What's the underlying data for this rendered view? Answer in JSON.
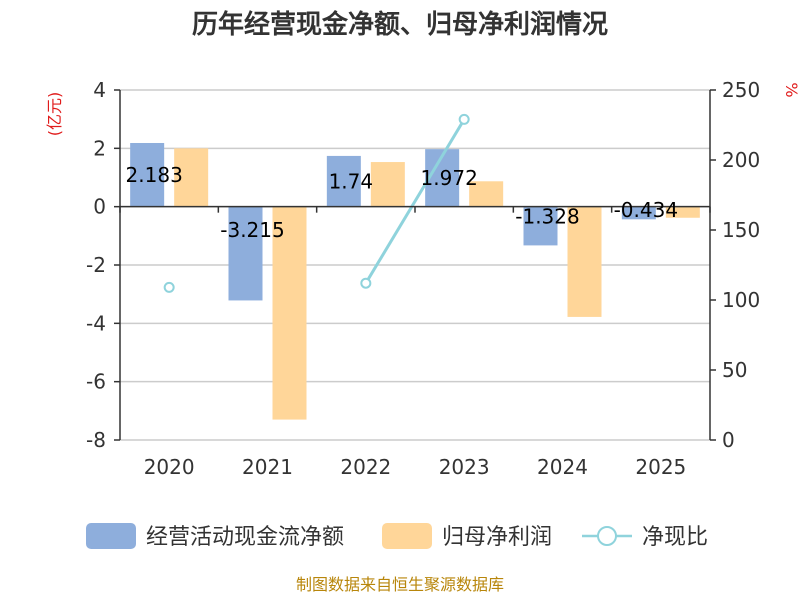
{
  "chart_data": {
    "type": "bar",
    "title": "历年经营现金净额、归母净利润情况",
    "categories": [
      "2020",
      "2021",
      "2022",
      "2023",
      "2024",
      "2025"
    ],
    "series": [
      {
        "name": "经营活动现金流净额",
        "axis": "left",
        "kind": "bar",
        "color": "#8eaedc",
        "values": [
          2.183,
          -3.215,
          1.74,
          1.972,
          -1.328,
          -0.434
        ],
        "labels": [
          "2.183",
          "-3.215",
          "1.74",
          "1.972",
          "-1.328",
          "-0.434"
        ]
      },
      {
        "name": "归母净利润",
        "axis": "left",
        "kind": "bar",
        "color": "#ffd699",
        "values": [
          2.0,
          -7.3,
          1.53,
          0.87,
          -3.78,
          -0.38
        ]
      },
      {
        "name": "净现比",
        "axis": "right",
        "kind": "line",
        "color": "#8fd3dc",
        "values": [
          109,
          null,
          112,
          229,
          null,
          null
        ]
      }
    ],
    "left_axis": {
      "unit": "(亿元)",
      "min": -8,
      "max": 4,
      "ticks": [
        "4",
        "2",
        "0",
        "-2",
        "-4",
        "-6",
        "-8"
      ]
    },
    "right_axis": {
      "unit": "%",
      "min": 0,
      "max": 250,
      "ticks": [
        "250",
        "200",
        "150",
        "100",
        "50",
        "0"
      ]
    },
    "legend_position": "bottom",
    "grid": true
  },
  "source": "制图数据来自恒生聚源数据库"
}
